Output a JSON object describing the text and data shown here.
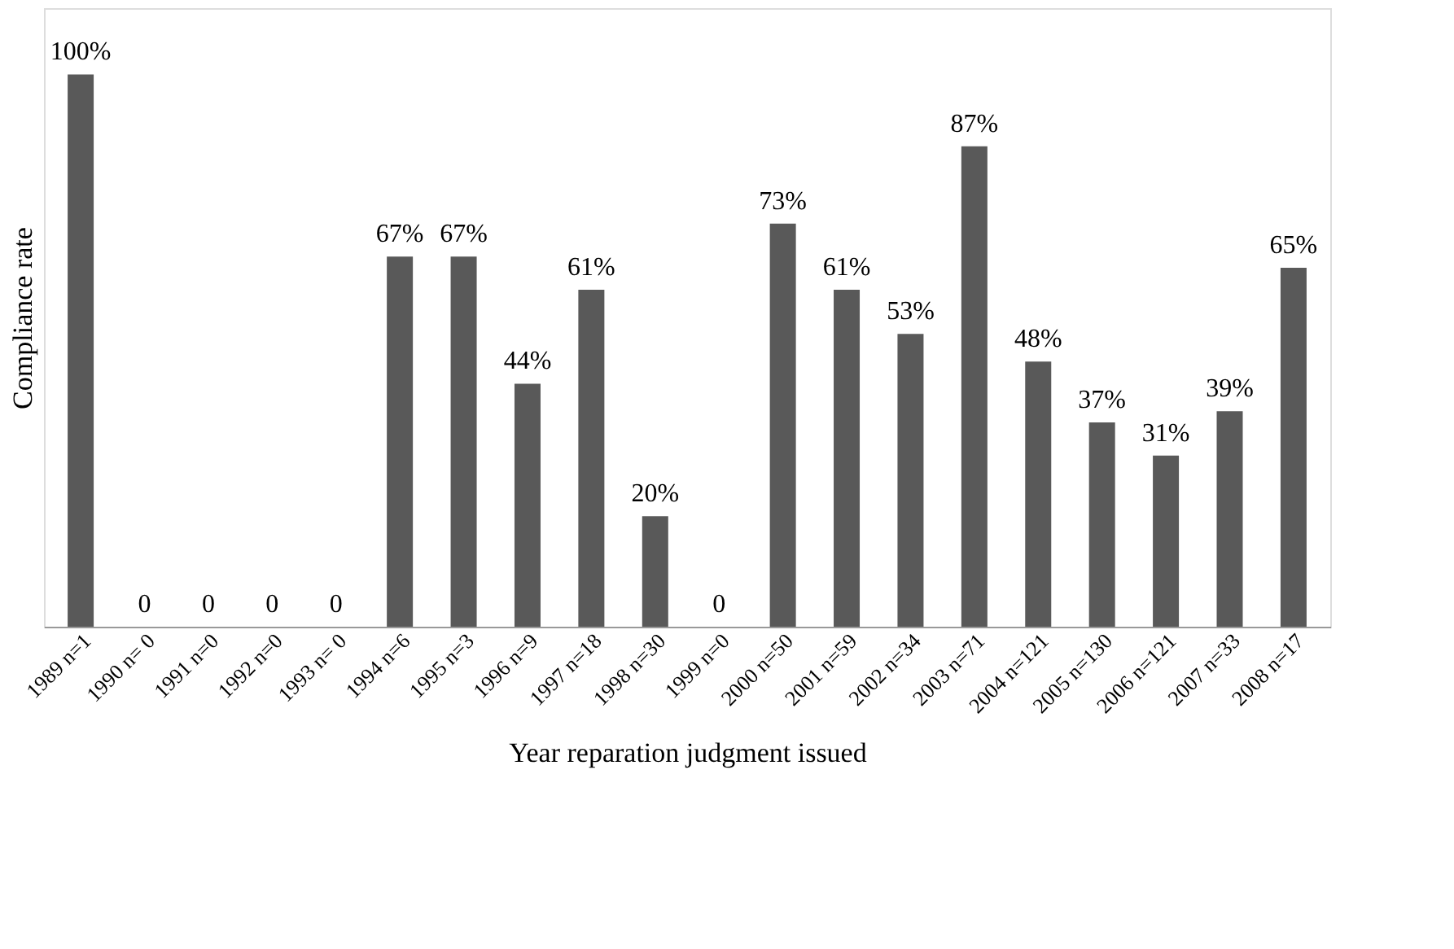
{
  "chart_data": {
    "type": "bar",
    "xlabel": "Year reparation judgment issued",
    "ylabel": "Compliance rate",
    "categories": [
      "1989 n=1",
      "1990 n= 0",
      "1991 n=0",
      "1992 n=0",
      "1993 n= 0",
      "1994 n=6",
      "1995 n=3",
      "1996 n=9",
      "1997 n=18",
      "1998 n=30",
      "1999 n=0",
      "2000 n=50",
      "2001 n=59",
      "2002 n=34",
      "2003 n=71",
      "2004 n=121",
      "2005 n=130",
      "2006 n=121",
      "2007 n=33",
      "2008 n=17"
    ],
    "values": [
      100,
      0,
      0,
      0,
      0,
      67,
      67,
      44,
      61,
      20,
      0,
      73,
      61,
      53,
      87,
      48,
      37,
      31,
      39,
      65
    ],
    "value_labels": [
      "100%",
      "0",
      "0",
      "0",
      "0",
      "67%",
      "67%",
      "44%",
      "61%",
      "20%",
      "0",
      "73%",
      "61%",
      "53%",
      "87%",
      "48%",
      "37%",
      "31%",
      "39%",
      "65%"
    ],
    "color": "#595959",
    "grid": false
  }
}
